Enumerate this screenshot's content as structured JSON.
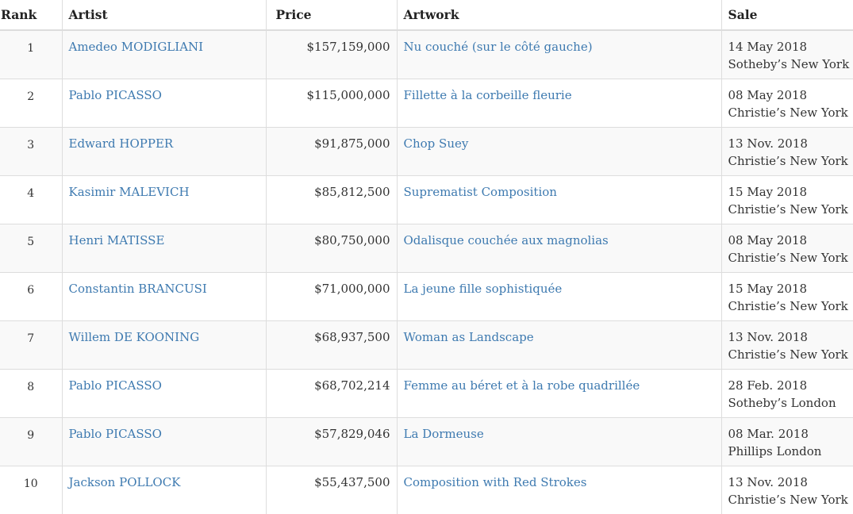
{
  "headers": {
    "rank": "Rank",
    "artist": "Artist",
    "price": "Price",
    "artwork": "Artwork",
    "sale": "Sale"
  },
  "rows": [
    {
      "rank": "1",
      "artist": "Amedeo MODIGLIANI",
      "price": "$157,159,000",
      "artwork": "Nu couché (sur le côté gauche)",
      "sale_date": "14 May 2018",
      "sale_house": "Sotheby’s New York"
    },
    {
      "rank": "2",
      "artist": "Pablo PICASSO",
      "price": "$115,000,000",
      "artwork": "Fillette à la corbeille fleurie",
      "sale_date": "08 May 2018",
      "sale_house": "Christie’s New York"
    },
    {
      "rank": "3",
      "artist": "Edward HOPPER",
      "price": "$91,875,000",
      "artwork": "Chop Suey",
      "sale_date": "13 Nov. 2018",
      "sale_house": "Christie’s New York"
    },
    {
      "rank": "4",
      "artist": "Kasimir MALEVICH",
      "price": "$85,812,500",
      "artwork": "Suprematist Composition",
      "sale_date": "15 May 2018",
      "sale_house": "Christie’s New York"
    },
    {
      "rank": "5",
      "artist": "Henri MATISSE",
      "price": "$80,750,000",
      "artwork": "Odalisque couchée aux magnolias",
      "sale_date": "08 May 2018",
      "sale_house": "Christie’s New York"
    },
    {
      "rank": "6",
      "artist": "Constantin BRANCUSI",
      "price": "$71,000,000",
      "artwork": "La jeune fille sophistiquée",
      "sale_date": "15 May 2018",
      "sale_house": "Christie’s New York"
    },
    {
      "rank": "7",
      "artist": "Willem DE KOONING",
      "price": "$68,937,500",
      "artwork": "Woman as Landscape",
      "sale_date": "13 Nov. 2018",
      "sale_house": "Christie’s New York"
    },
    {
      "rank": "8",
      "artist": "Pablo PICASSO",
      "price": "$68,702,214",
      "artwork": "Femme au béret et à la robe quadrillée",
      "sale_date": "28 Feb. 2018",
      "sale_house": "Sotheby’s London"
    },
    {
      "rank": "9",
      "artist": "Pablo PICASSO",
      "price": "$57,829,046",
      "artwork": "La Dormeuse",
      "sale_date": "08 Mar. 2018",
      "sale_house": "Phillips London"
    },
    {
      "rank": "10",
      "artist": "Jackson POLLOCK",
      "price": "$55,437,500",
      "artwork": "Composition with Red Strokes",
      "sale_date": "13 Nov. 2018",
      "sale_house": "Christie’s New York"
    }
  ],
  "colors": {
    "link": "#3e7ab0",
    "text": "#333333",
    "row_stripe": "#f9f9f9",
    "border": "#dddddd"
  }
}
